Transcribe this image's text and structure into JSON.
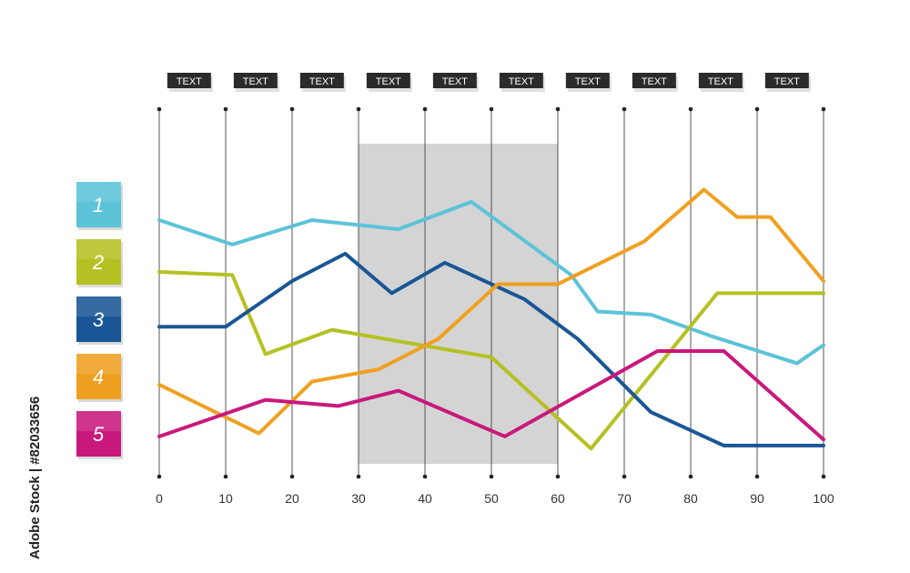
{
  "chart_data": {
    "type": "line",
    "xlim": [
      0,
      100
    ],
    "x_ticks": [
      0,
      10,
      20,
      30,
      40,
      50,
      60,
      70,
      80,
      90,
      100
    ],
    "top_labels": [
      "TEXT",
      "TEXT",
      "TEXT",
      "TEXT",
      "TEXT",
      "TEXT",
      "TEXT",
      "TEXT",
      "TEXT",
      "TEXT"
    ],
    "highlight_range": [
      30,
      60
    ],
    "legend": [
      "1",
      "2",
      "3",
      "4",
      "5"
    ],
    "series": [
      {
        "color": "#5cc3d9",
        "x": [
          0,
          11,
          23,
          36,
          47,
          62,
          66,
          74,
          83,
          96,
          100
        ],
        "y": [
          80,
          72,
          80,
          77,
          86,
          62,
          50,
          49,
          42,
          33,
          39
        ]
      },
      {
        "color": "#b5c123",
        "x": [
          0,
          11,
          16,
          26,
          50,
          65,
          84,
          100
        ],
        "y": [
          63,
          62,
          36,
          44,
          35,
          5,
          56,
          56
        ]
      },
      {
        "color": "#1a5696",
        "x": [
          0,
          10,
          20,
          28,
          35,
          43,
          55,
          63,
          74,
          85,
          100
        ],
        "y": [
          45,
          45,
          60,
          69,
          56,
          66,
          54,
          41,
          17,
          6,
          6
        ]
      },
      {
        "color": "#f0a020",
        "x": [
          0,
          15,
          23,
          33,
          42,
          51,
          60,
          73,
          82,
          87,
          92,
          100
        ],
        "y": [
          26,
          10,
          27,
          31,
          41,
          59,
          59,
          73,
          90,
          81,
          81,
          60
        ]
      },
      {
        "color": "#c9187d",
        "x": [
          0,
          16,
          27,
          36,
          52,
          75,
          85,
          100
        ],
        "y": [
          9,
          21,
          19,
          24,
          9,
          37,
          37,
          8
        ]
      }
    ]
  },
  "credit_text": "Adobe Stock | #82033656"
}
